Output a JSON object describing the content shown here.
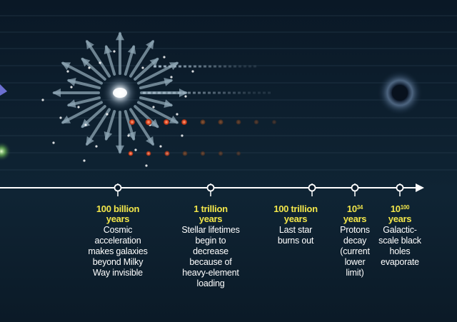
{
  "timeline": {
    "milestones": [
      {
        "label": "100 billion",
        "unit": "years",
        "description": [
          "Cosmic",
          "acceleration",
          "makes galaxies",
          "beyond Milky",
          "Way invisible"
        ]
      },
      {
        "label": "1 trillion",
        "unit": "years",
        "description": [
          "Stellar lifetimes",
          "begin to",
          "decrease",
          "because of",
          "heavy-element",
          "loading"
        ]
      },
      {
        "label": "100 trillion",
        "unit": "years",
        "description": [
          "Last star",
          "burns out"
        ]
      },
      {
        "base": "10",
        "exp": "34",
        "unit": "years",
        "description": [
          "Protons",
          "decay",
          "(current",
          "lower",
          "limit)"
        ]
      },
      {
        "base": "10",
        "exp": "100",
        "unit": "years",
        "description": [
          "Galactic-",
          "scale black",
          "holes",
          "evaporate"
        ]
      }
    ]
  },
  "colors": {
    "background": "#0b1c2b",
    "axis": "#ffffff",
    "year_label": "#f2e64a",
    "text": "#ffffff",
    "arrow": "#8ea6b4",
    "red_star": "#e8502a",
    "fading_star": "#7a4a2e"
  }
}
